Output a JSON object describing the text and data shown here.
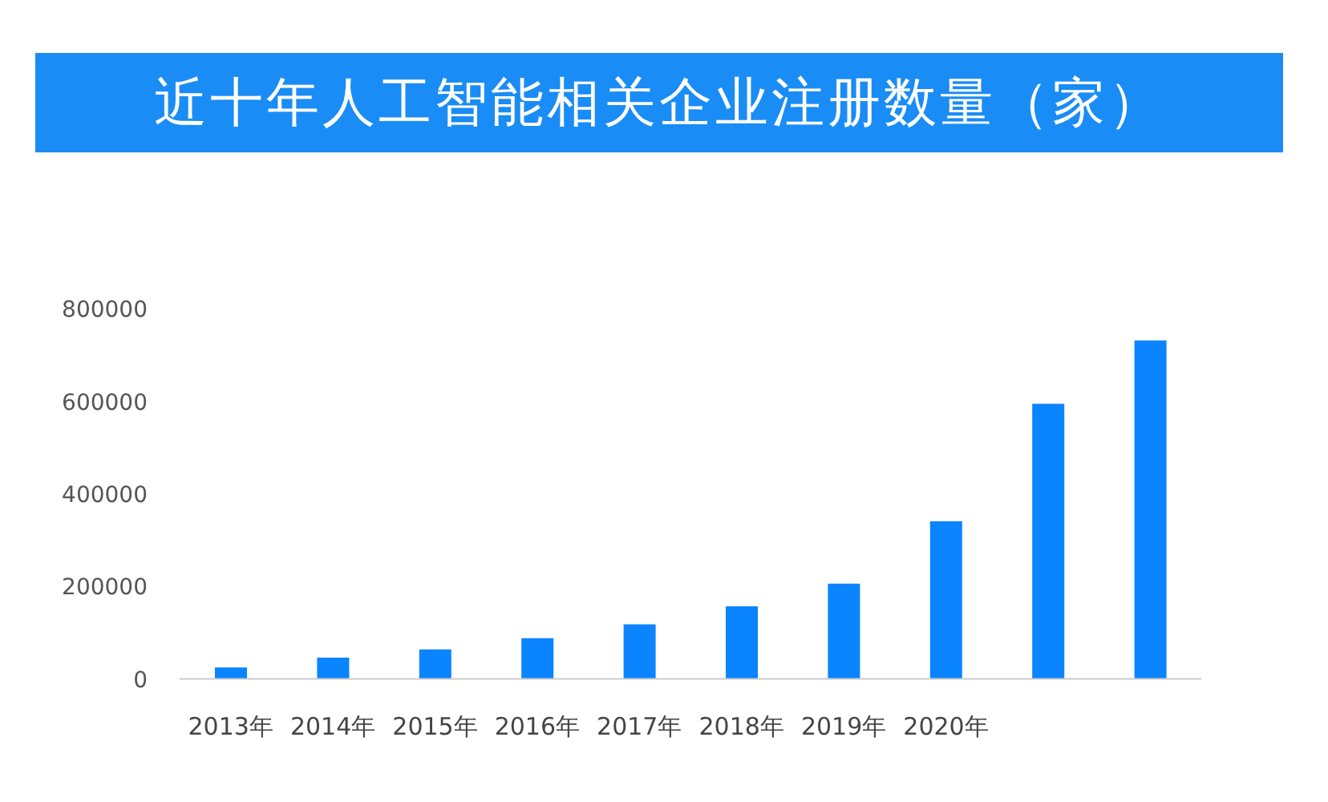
{
  "chart_data": {
    "type": "bar",
    "title": "近十年人工智能相关企业注册数量（家）",
    "categories": [
      "2013年",
      "2014年",
      "2015年",
      "2016年",
      "2017年",
      "2018年",
      "2019年",
      "2020年",
      null,
      null
    ],
    "values": [
      25000,
      46000,
      64000,
      88000,
      118000,
      157000,
      206000,
      341000,
      595000,
      732000
    ],
    "color": "#0a84ff",
    "ylim": [
      0,
      800000
    ],
    "yticks": [
      0,
      200000,
      400000,
      600000,
      800000
    ]
  }
}
